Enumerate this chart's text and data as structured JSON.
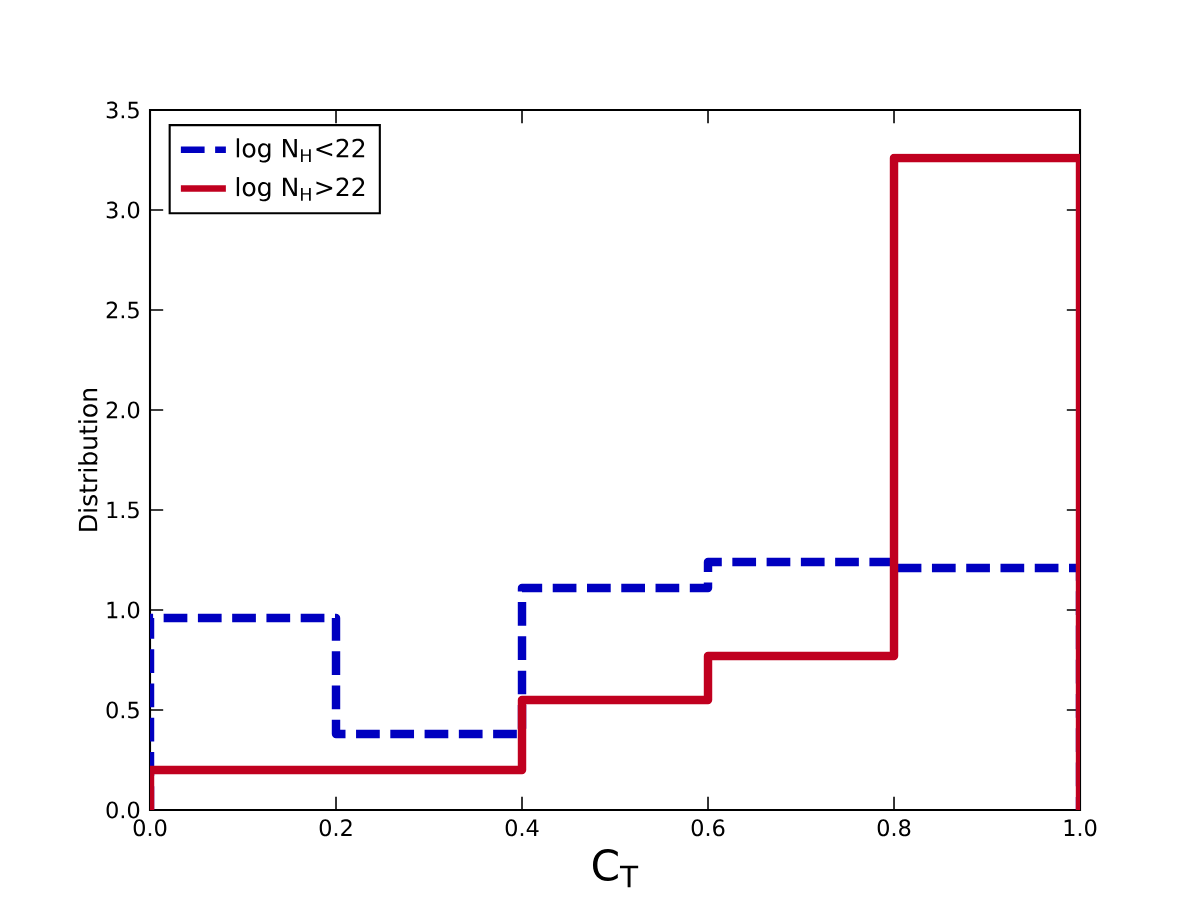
{
  "chart_data": {
    "type": "histogram",
    "xlabel": "C$_{T}$",
    "ylabel": "Distribution",
    "bins": [
      0,
      0.2,
      0.4,
      0.6,
      0.8,
      1.0
    ],
    "series": [
      {
        "name": "log N$_{H}$<22",
        "color": "#0000c0",
        "line_style": "dashed",
        "values": [
          0.96,
          0.38,
          1.11,
          1.24,
          1.21
        ]
      },
      {
        "name": "log N$_{H}$>22",
        "color": "#c0001f",
        "line_style": "solid",
        "values": [
          0.2,
          0.2,
          0.55,
          0.77,
          3.26
        ]
      }
    ],
    "xlim": [
      0,
      1.0
    ],
    "ylim": [
      0,
      3.5
    ],
    "xticks": [
      {
        "value": 0,
        "label": "0.0"
      },
      {
        "value": 0.2,
        "label": "0.2"
      },
      {
        "value": 0.4,
        "label": "0.4"
      },
      {
        "value": 0.6,
        "label": "0.6"
      },
      {
        "value": 0.8,
        "label": "0.8"
      },
      {
        "value": 1.0,
        "label": "1.0"
      }
    ],
    "yticks": [
      {
        "value": 0,
        "label": "0.0"
      },
      {
        "value": 0.5,
        "label": "0.5"
      },
      {
        "value": 1.0,
        "label": "1.0"
      },
      {
        "value": 1.5,
        "label": "1.5"
      },
      {
        "value": 2.0,
        "label": "2.0"
      },
      {
        "value": 2.5,
        "label": "2.5"
      },
      {
        "value": 3.0,
        "label": "3.0"
      },
      {
        "value": 3.5,
        "label": "3.5"
      }
    ],
    "legend": "top left"
  }
}
